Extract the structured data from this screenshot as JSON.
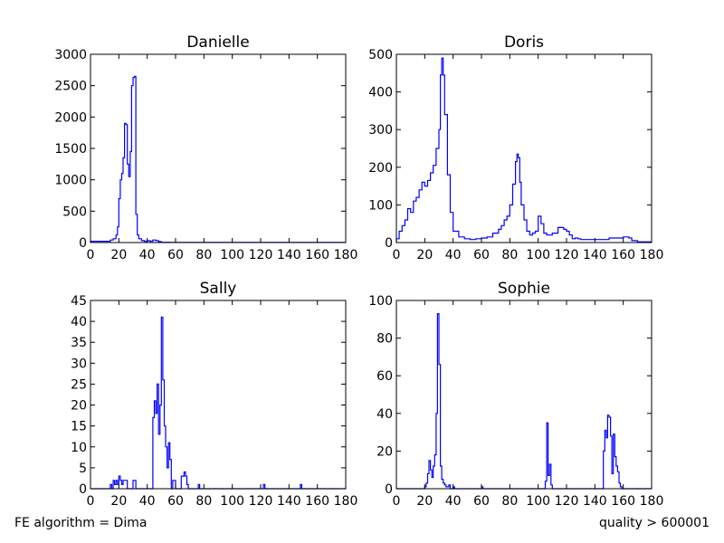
{
  "footer": {
    "left": "FE algorithm = Dima",
    "right": "quality > 600001"
  },
  "colors": {
    "line": "#0000ff",
    "axes": "#000000",
    "background": "#ffffff"
  },
  "chart_data": [
    {
      "type": "histogram",
      "title": "Danielle",
      "xlim": [
        0,
        180
      ],
      "ylim": [
        0,
        3000
      ],
      "xticks": [
        "0",
        "20",
        "40",
        "60",
        "80",
        "100",
        "120",
        "140",
        "160",
        "180"
      ],
      "yticks": [
        "0",
        "500",
        "1000",
        "1500",
        "2000",
        "2500",
        "3000"
      ],
      "x": [
        0,
        14,
        16,
        18,
        19,
        20,
        21,
        22,
        23,
        24,
        25,
        26,
        27,
        28,
        29,
        30,
        31,
        32,
        33,
        34,
        36,
        38,
        40,
        42,
        44,
        46,
        48,
        50,
        56,
        60,
        180
      ],
      "values": [
        20,
        40,
        60,
        120,
        250,
        700,
        1000,
        1100,
        1350,
        1900,
        1880,
        1250,
        1050,
        1450,
        2500,
        2630,
        2650,
        450,
        120,
        60,
        30,
        20,
        30,
        20,
        40,
        30,
        15,
        5,
        2,
        1,
        1
      ]
    },
    {
      "type": "histogram",
      "title": "Doris",
      "xlim": [
        0,
        180
      ],
      "ylim": [
        0,
        500
      ],
      "xticks": [
        "0",
        "20",
        "40",
        "60",
        "80",
        "100",
        "120",
        "140",
        "160",
        "180"
      ],
      "yticks": [
        "0",
        "100",
        "200",
        "300",
        "400",
        "500"
      ],
      "x": [
        0,
        2,
        4,
        6,
        8,
        10,
        12,
        14,
        16,
        18,
        20,
        22,
        24,
        26,
        28,
        30,
        31,
        32,
        33,
        34,
        36,
        38,
        40,
        44,
        48,
        52,
        56,
        60,
        64,
        68,
        72,
        74,
        76,
        78,
        80,
        82,
        84,
        85,
        86,
        87,
        88,
        90,
        92,
        94,
        96,
        98,
        100,
        102,
        104,
        106,
        110,
        114,
        118,
        120,
        122,
        124,
        126,
        128,
        130,
        140,
        150,
        160,
        164,
        166,
        170,
        180
      ],
      "values": [
        10,
        30,
        45,
        60,
        90,
        80,
        110,
        120,
        140,
        160,
        150,
        165,
        185,
        205,
        250,
        300,
        445,
        490,
        445,
        340,
        180,
        80,
        30,
        15,
        10,
        8,
        10,
        12,
        15,
        25,
        35,
        45,
        60,
        70,
        100,
        155,
        215,
        235,
        225,
        160,
        100,
        60,
        30,
        20,
        25,
        30,
        70,
        50,
        25,
        20,
        25,
        40,
        35,
        30,
        20,
        10,
        12,
        10,
        8,
        8,
        12,
        15,
        12,
        5,
        2,
        1
      ]
    },
    {
      "type": "histogram",
      "title": "Sally",
      "xlim": [
        0,
        180
      ],
      "ylim": [
        0,
        45
      ],
      "xticks": [
        "0",
        "20",
        "40",
        "60",
        "80",
        "100",
        "120",
        "140",
        "160",
        "180"
      ],
      "yticks": [
        "0",
        "5",
        "10",
        "15",
        "20",
        "25",
        "30",
        "35",
        "40",
        "45"
      ],
      "x": [
        0,
        14,
        15,
        16,
        17,
        18,
        19,
        20,
        21,
        22,
        23,
        24,
        26,
        28,
        30,
        32,
        44,
        45,
        46,
        47,
        48,
        49,
        50,
        51,
        52,
        53,
        54,
        55,
        56,
        57,
        58,
        60,
        62,
        64,
        66,
        67,
        68,
        69,
        70,
        76,
        77,
        78,
        122,
        123,
        124,
        148,
        149,
        150
      ],
      "values": [
        0,
        1,
        0,
        2,
        1,
        2,
        1,
        3,
        2,
        1,
        2,
        2,
        0,
        0,
        2,
        0,
        17,
        21,
        18,
        25,
        13,
        20,
        41,
        26,
        15,
        10,
        5,
        11,
        7,
        0,
        2,
        0,
        0,
        3,
        4,
        3,
        1,
        0,
        0,
        1,
        0,
        0,
        1,
        0,
        0,
        1,
        0,
        0
      ]
    },
    {
      "type": "histogram",
      "title": "Sophie",
      "xlim": [
        0,
        180
      ],
      "ylim": [
        0,
        100
      ],
      "xticks": [
        "0",
        "20",
        "40",
        "60",
        "80",
        "100",
        "120",
        "140",
        "160",
        "180"
      ],
      "yticks": [
        "0",
        "20",
        "40",
        "60",
        "80",
        "100"
      ],
      "x": [
        0,
        20,
        21,
        22,
        23,
        24,
        25,
        26,
        27,
        28,
        29,
        30,
        31,
        32,
        33,
        34,
        35,
        36,
        37,
        38,
        40,
        41,
        42,
        60,
        61,
        105,
        106,
        107,
        108,
        109,
        110,
        146,
        147,
        148,
        149,
        150,
        151,
        152,
        153,
        154,
        155,
        156,
        157,
        158,
        159,
        160
      ],
      "values": [
        0,
        1,
        3,
        8,
        15,
        10,
        6,
        12,
        18,
        40,
        93,
        66,
        12,
        5,
        3,
        2,
        1,
        1,
        2,
        0,
        1,
        0,
        0,
        1,
        0,
        4,
        35,
        7,
        13,
        2,
        0,
        20,
        31,
        27,
        39,
        38,
        28,
        8,
        29,
        17,
        12,
        9,
        3,
        1,
        0,
        0
      ]
    }
  ]
}
